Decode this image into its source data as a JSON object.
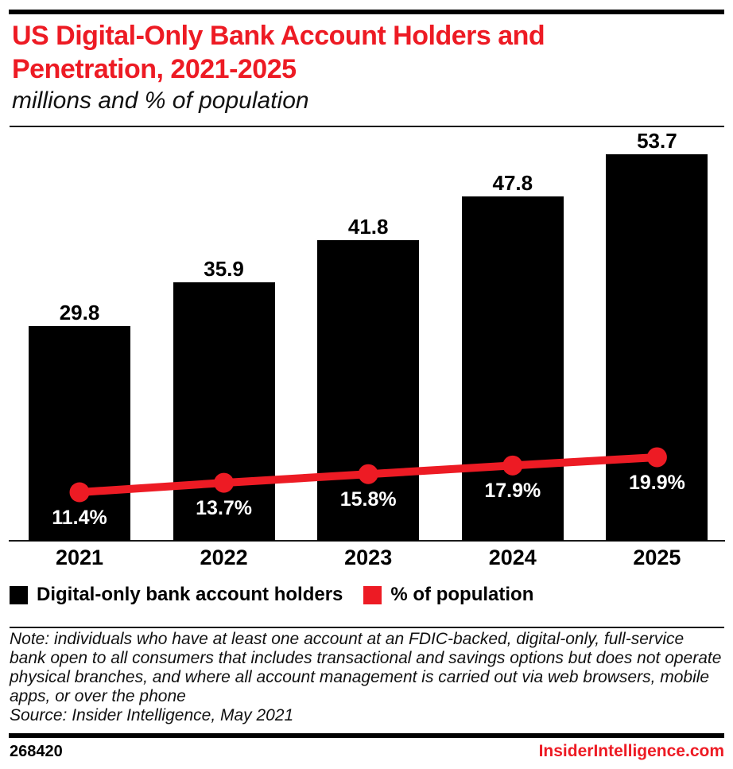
{
  "header": {
    "title_lines": [
      "US Digital-Only Bank Account Holders and",
      "Penetration, 2021-2025"
    ],
    "subtitle": "millions and % of population"
  },
  "chart_data": {
    "type": "bar",
    "subtype": "bar-line-combo",
    "title": "US Digital-Only Bank Account Holders and Penetration, 2021-2025",
    "subtitle": "millions and % of population",
    "categories": [
      "2021",
      "2022",
      "2023",
      "2024",
      "2025"
    ],
    "series": [
      {
        "name": "Digital-only bank account holders",
        "type": "bar",
        "unit": "millions",
        "color": "#000000",
        "values": [
          29.8,
          35.9,
          41.8,
          47.8,
          53.7
        ]
      },
      {
        "name": "% of population",
        "type": "line",
        "unit": "%",
        "color": "#ED1B24",
        "values": [
          11.4,
          13.7,
          15.8,
          17.9,
          19.9
        ]
      }
    ],
    "grid": false,
    "legend_position": "bottom",
    "value_labels": "all-points"
  },
  "legend": {
    "items": [
      {
        "label": "Digital-only bank account holders",
        "color": "#000000"
      },
      {
        "label": "% of population",
        "color": "#ED1B24"
      }
    ]
  },
  "note": "Note: individuals who have at least one account at an FDIC-backed, digital-only, full-service bank open to all consumers that includes transactional and savings options but does not operate physical branches, and where all account management is carried out via web browsers, mobile apps, or over the phone",
  "source": "Source: Insider Intelligence, May 2021",
  "footer": {
    "chart_id": "268420",
    "site": "InsiderIntelligence.com"
  },
  "colors": {
    "accent_red": "#ED1B24",
    "bar_black": "#000000"
  }
}
